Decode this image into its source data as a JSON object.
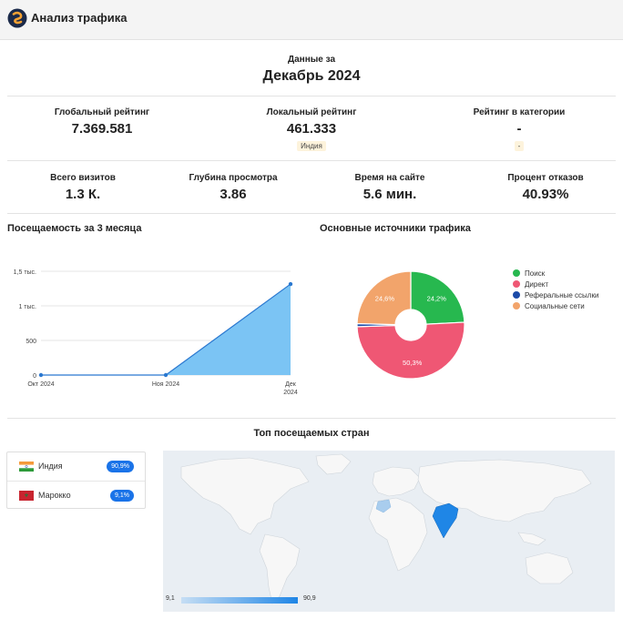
{
  "header": {
    "title": "Анализ трафика",
    "logo_icon": "similarweb-logo-icon"
  },
  "period": {
    "label": "Данные за",
    "value": "Декабрь 2024"
  },
  "ranks": [
    {
      "label": "Глобальный рейтинг",
      "value": "7.369.581",
      "badge": ""
    },
    {
      "label": "Локальный рейтинг",
      "value": "461.333",
      "badge": "Индия"
    },
    {
      "label": "Рейтинг в категории",
      "value": "-",
      "badge": "-"
    }
  ],
  "metrics": [
    {
      "label": "Всего визитов",
      "value": "1.3 К."
    },
    {
      "label": "Глубина просмотра",
      "value": "3.86"
    },
    {
      "label": "Время на сайте",
      "value": "5.6 мин."
    },
    {
      "label": "Процент отказов",
      "value": "40.93%"
    }
  ],
  "visits_title": "Посещаемость за 3 месяца",
  "sources_title": "Основные источники трафика",
  "countries_title": "Топ посещаемых стран",
  "colors": {
    "search": "#27b84f",
    "direct": "#ef5774",
    "referral": "#1b4aa8",
    "social": "#f2a46b",
    "area": "#7bc4f4",
    "line": "#2a78d0"
  },
  "chart_data": [
    {
      "type": "area",
      "title": "Посещаемость за 3 месяца",
      "categories": [
        "Окт 2024",
        "Ноя 2024",
        "Дек 2024"
      ],
      "values": [
        0,
        0,
        1315
      ],
      "ylim": [
        0,
        1500
      ],
      "yticks": [
        0,
        500,
        1000,
        1500
      ],
      "ytick_labels": [
        "0",
        "500",
        "1 тыс.",
        "1,5 тыс."
      ]
    },
    {
      "type": "pie",
      "title": "Основные источники трафика",
      "labels": [
        "Поиск",
        "Директ",
        "Реферальные ссылки",
        "Социальные сети"
      ],
      "values": [
        24.2,
        50.3,
        0.9,
        24.6
      ],
      "value_labels": [
        "24,2%",
        "50,3%",
        "",
        "24,6%"
      ]
    }
  ],
  "countries": [
    {
      "name": "Индия",
      "share": "90,9%"
    },
    {
      "name": "Марокко",
      "share": "9,1%"
    }
  ],
  "map_scale": {
    "min": "9,1",
    "max": "90,9"
  }
}
